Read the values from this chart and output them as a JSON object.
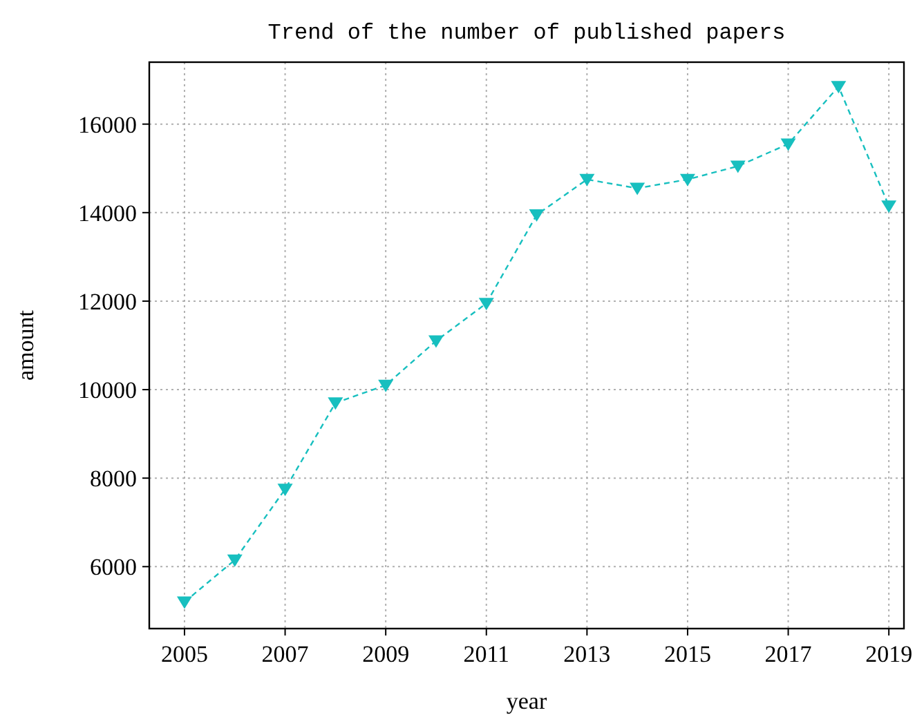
{
  "chart_data": {
    "type": "line",
    "title": "Trend of the number of published papers",
    "xlabel": "year",
    "ylabel": "amount",
    "x": [
      2005,
      2006,
      2007,
      2008,
      2009,
      2010,
      2011,
      2012,
      2013,
      2014,
      2015,
      2016,
      2017,
      2018,
      2019
    ],
    "series": [
      {
        "color": "#17bfbf",
        "values": [
          5200,
          6150,
          7750,
          9700,
          10100,
          11100,
          11950,
          13950,
          14750,
          14550,
          14750,
          15050,
          15550,
          16850,
          14150
        ]
      }
    ],
    "xlim": [
      2004.3,
      2019.3
    ],
    "xticks": [
      2005,
      2007,
      2009,
      2011,
      2013,
      2015,
      2017,
      2019
    ],
    "ylim": [
      4600,
      17400
    ],
    "yticks": [
      6000,
      8000,
      10000,
      12000,
      14000,
      16000
    ],
    "grid": true,
    "marker": "triangle",
    "line_style": "dashed"
  }
}
